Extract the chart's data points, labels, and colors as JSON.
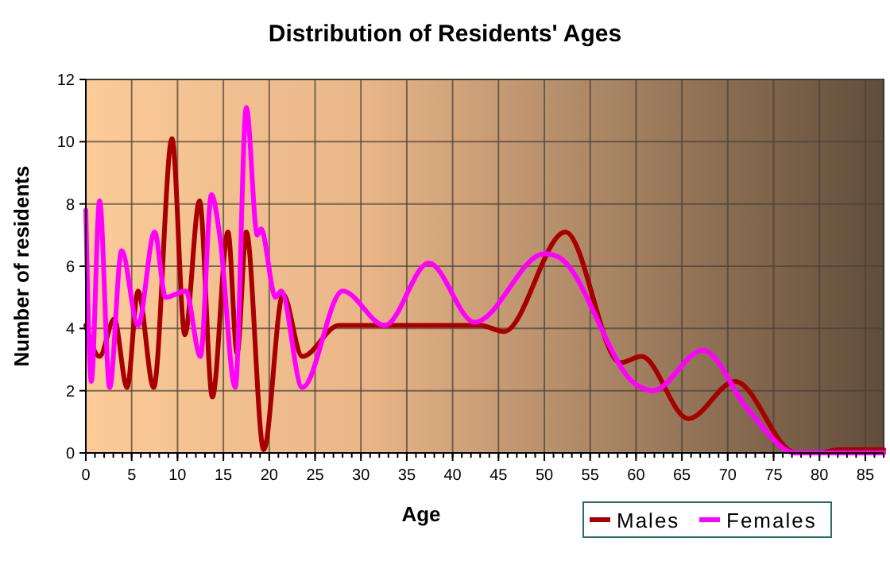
{
  "chart_data": {
    "type": "line",
    "title": "Distribution of Residents' Ages",
    "xlabel": "Age",
    "ylabel": "Number of residents",
    "xlim": [
      0,
      87
    ],
    "xticks": [
      0,
      5,
      10,
      15,
      20,
      25,
      30,
      35,
      40,
      45,
      50,
      55,
      60,
      65,
      70,
      75,
      80,
      85
    ],
    "ylim": [
      0,
      12
    ],
    "yticks": [
      0,
      2,
      4,
      6,
      8,
      10,
      12
    ],
    "grid": true,
    "legend": "bottom right",
    "marker": "none",
    "line_style": "solid",
    "series": [
      {
        "name": "Males",
        "color": "#a80000",
        "x": [
          0,
          1.5,
          3.1,
          4.5,
          5.7,
          7.4,
          9.4,
          10.8,
          12.4,
          13.8,
          15.5,
          16.5,
          17.5,
          19.4,
          21.5,
          23.6,
          27.6,
          35,
          43,
          45.6,
          52.3,
          58.3,
          60.6,
          65.7,
          70.8,
          77.4,
          80,
          82,
          87
        ],
        "values": [
          4.1,
          3.1,
          4.3,
          2.1,
          5.2,
          2.1,
          10.1,
          3.8,
          8.1,
          1.8,
          7.1,
          3.2,
          7.1,
          0.1,
          5.1,
          3.1,
          4.1,
          4.1,
          4.1,
          3.9,
          7.1,
          2.9,
          3.1,
          1.1,
          2.3,
          0,
          0,
          0.1,
          0.1
        ]
      },
      {
        "name": "Females",
        "color": "#ff00ff",
        "x": [
          0,
          0.6,
          1.5,
          2.6,
          3.9,
          5.7,
          7.5,
          8.7,
          10.9,
          12.5,
          13.7,
          14.6,
          16.3,
          17.5,
          18.7,
          19.1,
          20.7,
          21.3,
          23.6,
          28,
          32.6,
          37.4,
          42.4,
          50,
          51.5,
          60,
          61.8,
          67.3,
          72.2,
          77.4,
          87
        ],
        "values": [
          7.8,
          2.3,
          8.1,
          2.1,
          6.5,
          4.1,
          7.1,
          5,
          5.2,
          3.1,
          8.3,
          7,
          2.1,
          11.1,
          7,
          7.2,
          5,
          5.2,
          2.1,
          5.2,
          4.1,
          6.1,
          4.2,
          6.4,
          6.3,
          2.2,
          2,
          3.3,
          1.4,
          0,
          0
        ]
      }
    ]
  }
}
